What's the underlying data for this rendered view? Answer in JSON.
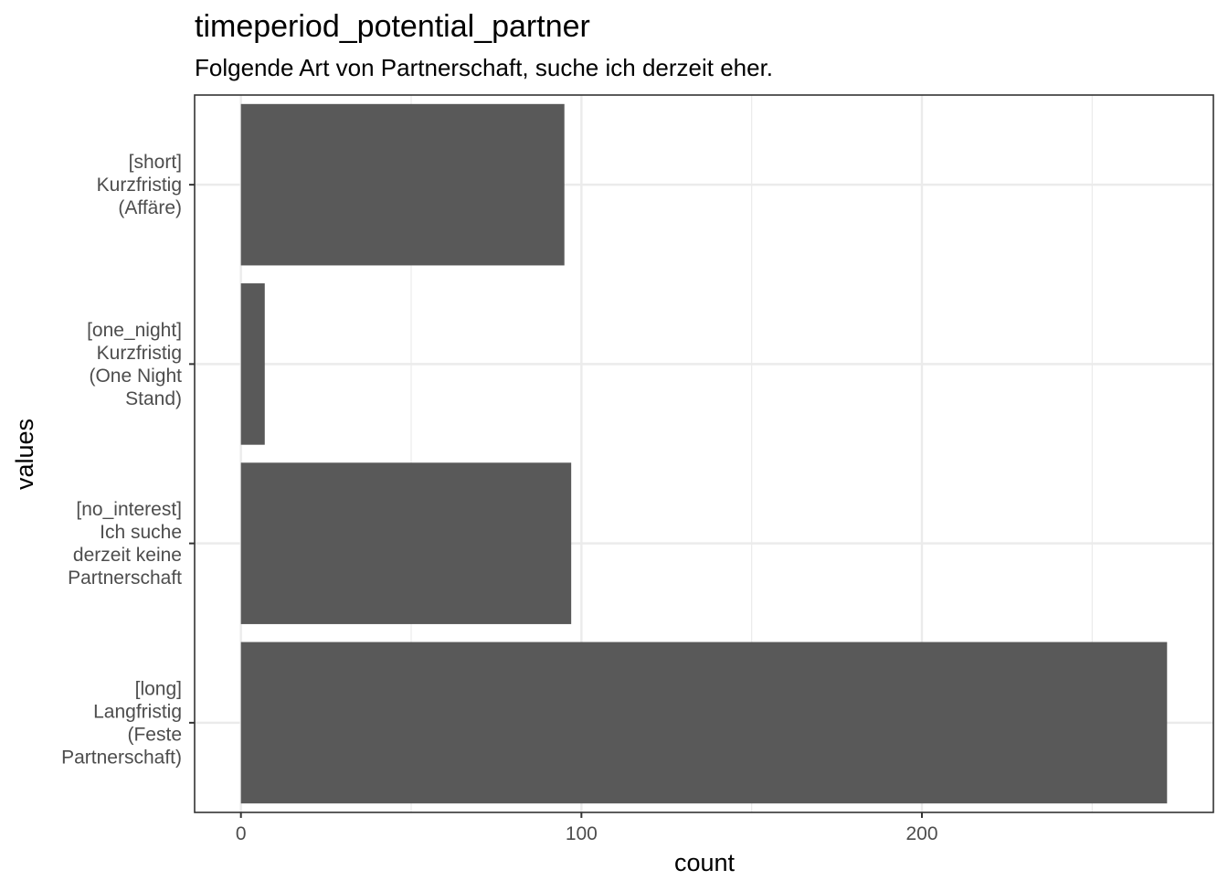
{
  "chart_data": {
    "type": "bar",
    "orientation": "horizontal",
    "title": "timeperiod_potential_partner",
    "subtitle": "Folgende Art von Partnerschaft, suche ich derzeit eher.",
    "xlabel": "count",
    "ylabel": "values",
    "categories": [
      [
        "[short]",
        "Kurzfristig",
        "(Affäre)"
      ],
      [
        "[one_night]",
        "Kurzfristig",
        "(One Night",
        "Stand)"
      ],
      [
        "[no_interest]",
        "Ich suche",
        "derzeit keine",
        "Partnerschaft"
      ],
      [
        "[long]",
        "Langfristig",
        "(Feste",
        "Partnerschaft)"
      ]
    ],
    "values": [
      95,
      7,
      97,
      272
    ],
    "xlim": [
      -13.6,
      285.6
    ],
    "x_ticks": [
      "0",
      "100",
      "200"
    ],
    "x_tick_values": [
      0,
      100,
      200
    ],
    "x_minor_gridlines": [
      50,
      150,
      250
    ],
    "grid": true,
    "bar_color": "#595959",
    "grid_color": "#ebebeb",
    "panel_border_color": "#333333",
    "tick_label_color": "#4d4d4d"
  }
}
